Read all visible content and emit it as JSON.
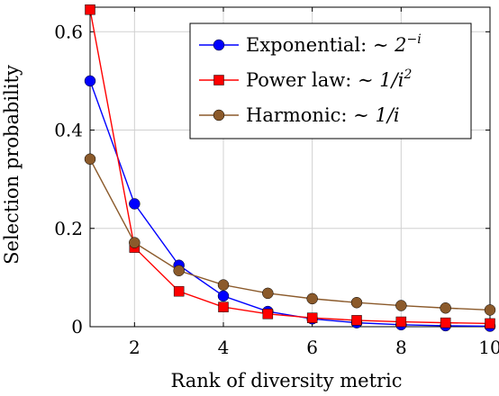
{
  "chart_data": {
    "type": "line",
    "title": "",
    "xlabel": "Rank of diversity metric",
    "ylabel": "Selection probability",
    "xlim": [
      1,
      10
    ],
    "ylim": [
      0,
      0.65
    ],
    "xticks": [
      2,
      4,
      6,
      8,
      10
    ],
    "yticks": [
      0,
      0.2,
      0.4,
      0.6
    ],
    "xtick_labels": [
      "2",
      "4",
      "6",
      "8",
      "10"
    ],
    "ytick_labels": [
      "0",
      "0.2",
      "0.4",
      "0.6"
    ],
    "grid": true,
    "legend_position": "top-right",
    "x": [
      1,
      2,
      3,
      4,
      5,
      6,
      7,
      8,
      9,
      10
    ],
    "series": [
      {
        "name": "Exponential: ~ 2^{-i}",
        "legend_prefix": "Exponential: ",
        "legend_base": "2",
        "legend_sup": "−i",
        "legend_after": "",
        "color": "#0000ff",
        "marker": "circle",
        "values": [
          0.5,
          0.25,
          0.125,
          0.0625,
          0.031,
          0.016,
          0.008,
          0.004,
          0.002,
          0.001
        ]
      },
      {
        "name": "Power law: ~ 1/i^2",
        "legend_prefix": "Power law: ",
        "legend_base": "1/i",
        "legend_sup": "2",
        "legend_after": "",
        "color": "#ff0000",
        "marker": "square",
        "values": [
          0.645,
          0.161,
          0.072,
          0.04,
          0.026,
          0.018,
          0.013,
          0.01,
          0.008,
          0.0065
        ]
      },
      {
        "name": "Harmonic: ~ 1/i",
        "legend_prefix": "Harmonic: ",
        "legend_base": "1/i",
        "legend_sup": "",
        "legend_after": "",
        "color": "#8b5a2b",
        "marker": "circle",
        "values": [
          0.341,
          0.171,
          0.114,
          0.085,
          0.068,
          0.057,
          0.049,
          0.043,
          0.038,
          0.034
        ]
      }
    ]
  }
}
